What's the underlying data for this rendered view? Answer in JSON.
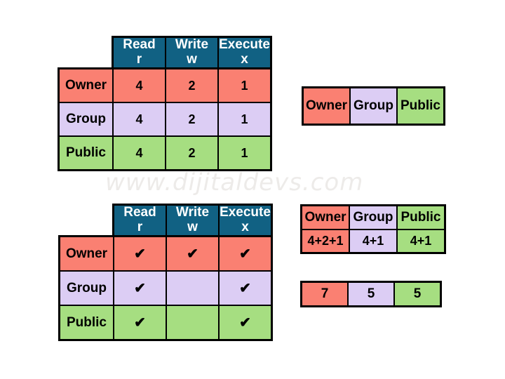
{
  "watermark": "www.dijitaldevs.com",
  "colors": {
    "header_teal": "#116183",
    "owner_salmon": "#FA8072",
    "group_lavender": "#DCCDF4",
    "public_green": "#A6DE81",
    "border_black": "#000000"
  },
  "octal_table": {
    "headers": [
      {
        "title": "Read",
        "sub": "r"
      },
      {
        "title": "Write",
        "sub": "w"
      },
      {
        "title": "Execute",
        "sub": "x"
      }
    ],
    "rows": [
      {
        "label": "Owner",
        "values": [
          "4",
          "2",
          "1"
        ]
      },
      {
        "label": "Group",
        "values": [
          "4",
          "2",
          "1"
        ]
      },
      {
        "label": "Public",
        "values": [
          "4",
          "2",
          "1"
        ]
      }
    ]
  },
  "ugo_strip": {
    "cells": [
      "Owner",
      "Group",
      "Public"
    ]
  },
  "check_table": {
    "headers": [
      {
        "title": "Read",
        "sub": "r"
      },
      {
        "title": "Write",
        "sub": "w"
      },
      {
        "title": "Execute",
        "sub": "x"
      }
    ],
    "rows": [
      {
        "label": "Owner",
        "values": [
          "✔",
          "✔",
          "✔"
        ]
      },
      {
        "label": "Group",
        "values": [
          "✔",
          "",
          "✔"
        ]
      },
      {
        "label": "Public",
        "values": [
          "✔",
          "",
          "✔"
        ]
      }
    ]
  },
  "sum_table": {
    "headers": [
      "Owner",
      "Group",
      "Public"
    ],
    "values": [
      "4+2+1",
      "4+1",
      "4+1"
    ]
  },
  "result_strip": {
    "cells": [
      "7",
      "5",
      "5"
    ]
  }
}
